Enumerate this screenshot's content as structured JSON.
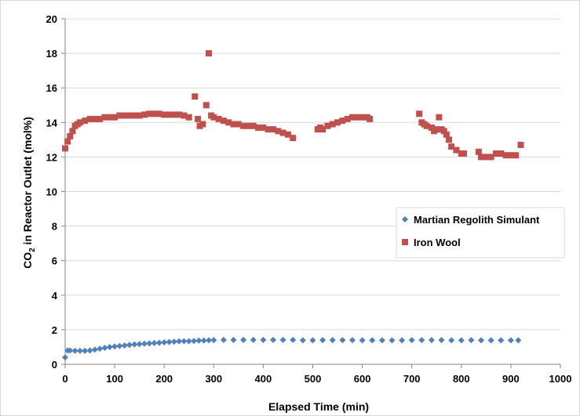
{
  "chart_data": {
    "type": "scatter",
    "title": "",
    "xlabel": "Elapsed Time (min)",
    "ylabel_main": "CO",
    "ylabel_sub": "2",
    "ylabel_rest": " in Reactor Outlet (mol%)",
    "xlim": [
      0,
      1000
    ],
    "ylim": [
      0,
      20
    ],
    "xticks": [
      0,
      100,
      200,
      300,
      400,
      500,
      600,
      700,
      800,
      900,
      1000
    ],
    "yticks": [
      0,
      2,
      4,
      6,
      8,
      10,
      12,
      14,
      16,
      18,
      20
    ],
    "grid": "horizontal",
    "legend_position": "right",
    "series": [
      {
        "name": "Martian Regolith Simulant",
        "color": "#4f81bd",
        "marker": "diamond",
        "points": [
          [
            0,
            0.4
          ],
          [
            5,
            0.8
          ],
          [
            10,
            0.8
          ],
          [
            20,
            0.78
          ],
          [
            30,
            0.78
          ],
          [
            40,
            0.78
          ],
          [
            50,
            0.8
          ],
          [
            60,
            0.85
          ],
          [
            70,
            0.9
          ],
          [
            80,
            0.95
          ],
          [
            90,
            1.0
          ],
          [
            100,
            1.03
          ],
          [
            110,
            1.06
          ],
          [
            120,
            1.09
          ],
          [
            130,
            1.12
          ],
          [
            140,
            1.15
          ],
          [
            150,
            1.17
          ],
          [
            160,
            1.19
          ],
          [
            170,
            1.21
          ],
          [
            180,
            1.23
          ],
          [
            190,
            1.25
          ],
          [
            200,
            1.27
          ],
          [
            210,
            1.29
          ],
          [
            220,
            1.31
          ],
          [
            230,
            1.33
          ],
          [
            240,
            1.34
          ],
          [
            250,
            1.34
          ],
          [
            260,
            1.35
          ],
          [
            270,
            1.37
          ],
          [
            280,
            1.38
          ],
          [
            290,
            1.39
          ],
          [
            300,
            1.4
          ],
          [
            320,
            1.41
          ],
          [
            340,
            1.41
          ],
          [
            360,
            1.41
          ],
          [
            380,
            1.41
          ],
          [
            400,
            1.41
          ],
          [
            420,
            1.41
          ],
          [
            440,
            1.41
          ],
          [
            460,
            1.41
          ],
          [
            480,
            1.39
          ],
          [
            500,
            1.39
          ],
          [
            520,
            1.4
          ],
          [
            540,
            1.4
          ],
          [
            560,
            1.4
          ],
          [
            580,
            1.4
          ],
          [
            600,
            1.39
          ],
          [
            620,
            1.39
          ],
          [
            640,
            1.39
          ],
          [
            660,
            1.39
          ],
          [
            680,
            1.39
          ],
          [
            700,
            1.4
          ],
          [
            720,
            1.4
          ],
          [
            740,
            1.4
          ],
          [
            760,
            1.4
          ],
          [
            780,
            1.39
          ],
          [
            800,
            1.39
          ],
          [
            820,
            1.4
          ],
          [
            840,
            1.39
          ],
          [
            860,
            1.39
          ],
          [
            880,
            1.39
          ],
          [
            900,
            1.39
          ],
          [
            915,
            1.39
          ]
        ]
      },
      {
        "name": "Iron Wool",
        "color": "#c0504d",
        "marker": "square",
        "points": [
          [
            0,
            12.5
          ],
          [
            5,
            12.9
          ],
          [
            10,
            13.2
          ],
          [
            15,
            13.5
          ],
          [
            20,
            13.8
          ],
          [
            25,
            13.9
          ],
          [
            30,
            14.0
          ],
          [
            40,
            14.1
          ],
          [
            50,
            14.2
          ],
          [
            60,
            14.2
          ],
          [
            70,
            14.2
          ],
          [
            80,
            14.3
          ],
          [
            90,
            14.3
          ],
          [
            100,
            14.3
          ],
          [
            110,
            14.4
          ],
          [
            120,
            14.4
          ],
          [
            130,
            14.4
          ],
          [
            140,
            14.4
          ],
          [
            150,
            14.4
          ],
          [
            160,
            14.45
          ],
          [
            170,
            14.5
          ],
          [
            180,
            14.5
          ],
          [
            190,
            14.5
          ],
          [
            200,
            14.45
          ],
          [
            210,
            14.45
          ],
          [
            220,
            14.45
          ],
          [
            230,
            14.45
          ],
          [
            240,
            14.4
          ],
          [
            250,
            14.3
          ],
          [
            262,
            15.5
          ],
          [
            268,
            14.2
          ],
          [
            272,
            13.8
          ],
          [
            278,
            13.9
          ],
          [
            285,
            15.0
          ],
          [
            290,
            18.0
          ],
          [
            295,
            14.4
          ],
          [
            300,
            14.3
          ],
          [
            310,
            14.2
          ],
          [
            320,
            14.1
          ],
          [
            330,
            14.0
          ],
          [
            340,
            13.9
          ],
          [
            350,
            13.9
          ],
          [
            360,
            13.8
          ],
          [
            370,
            13.8
          ],
          [
            380,
            13.8
          ],
          [
            390,
            13.7
          ],
          [
            400,
            13.7
          ],
          [
            410,
            13.6
          ],
          [
            420,
            13.6
          ],
          [
            430,
            13.5
          ],
          [
            440,
            13.4
          ],
          [
            450,
            13.3
          ],
          [
            460,
            13.1
          ],
          [
            510,
            13.6
          ],
          [
            515,
            13.7
          ],
          [
            520,
            13.6
          ],
          [
            530,
            13.8
          ],
          [
            540,
            13.9
          ],
          [
            550,
            14.0
          ],
          [
            560,
            14.1
          ],
          [
            570,
            14.2
          ],
          [
            580,
            14.3
          ],
          [
            590,
            14.3
          ],
          [
            600,
            14.3
          ],
          [
            610,
            14.3
          ],
          [
            615,
            14.2
          ],
          [
            715,
            14.5
          ],
          [
            720,
            14.0
          ],
          [
            725,
            13.9
          ],
          [
            730,
            13.8
          ],
          [
            740,
            13.7
          ],
          [
            745,
            13.5
          ],
          [
            750,
            13.6
          ],
          [
            755,
            14.3
          ],
          [
            760,
            13.6
          ],
          [
            765,
            13.5
          ],
          [
            770,
            13.3
          ],
          [
            775,
            13.0
          ],
          [
            780,
            12.6
          ],
          [
            790,
            12.4
          ],
          [
            800,
            12.2
          ],
          [
            805,
            12.2
          ],
          [
            835,
            12.3
          ],
          [
            840,
            12.0
          ],
          [
            850,
            12.0
          ],
          [
            860,
            12.0
          ],
          [
            870,
            12.2
          ],
          [
            880,
            12.2
          ],
          [
            890,
            12.1
          ],
          [
            900,
            12.1
          ],
          [
            910,
            12.1
          ],
          [
            920,
            12.7
          ]
        ]
      }
    ]
  }
}
